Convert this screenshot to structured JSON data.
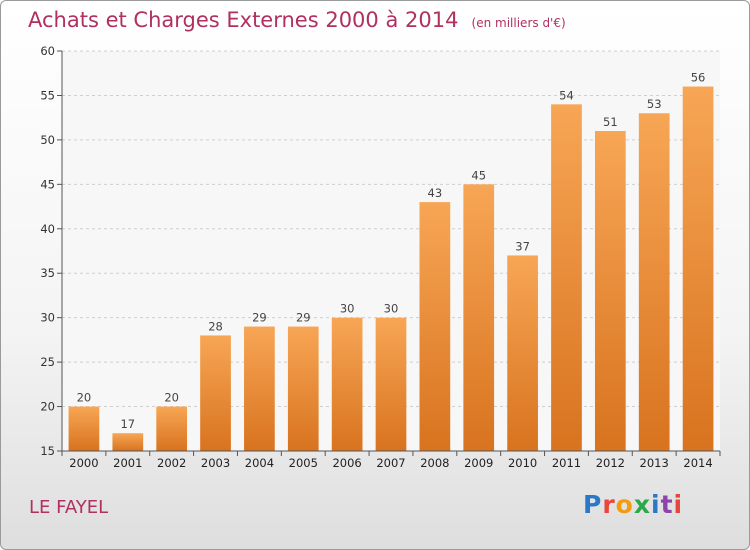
{
  "header": {
    "title": "Achats et Charges Externes 2000 à 2014",
    "unit": "(en milliers d'€)"
  },
  "footer": {
    "place": "LE FAYEL",
    "brand": "Proxiti",
    "brand_colors": [
      "#2a78c8",
      "#e8453c",
      "#f39c12",
      "#2ba84a",
      "#2a78c8",
      "#8e44ad",
      "#e8453c"
    ]
  },
  "colors": {
    "bar_top": "#f7a655",
    "bar_bottom": "#d8731f",
    "title": "#b03060",
    "grid": "#cfcfcf"
  },
  "chart_data": {
    "type": "bar",
    "title": "Achats et Charges Externes 2000 à 2014",
    "xlabel": "",
    "ylabel": "",
    "ylim": [
      15,
      60
    ],
    "yticks": [
      15,
      20,
      25,
      30,
      35,
      40,
      45,
      50,
      55,
      60
    ],
    "grid": true,
    "categories": [
      "2000",
      "2001",
      "2002",
      "2003",
      "2004",
      "2005",
      "2006",
      "2007",
      "2008",
      "2009",
      "2010",
      "2011",
      "2012",
      "2013",
      "2014"
    ],
    "values": [
      20,
      17,
      20,
      28,
      29,
      29,
      30,
      30,
      43,
      45,
      37,
      54,
      51,
      53,
      56
    ]
  }
}
